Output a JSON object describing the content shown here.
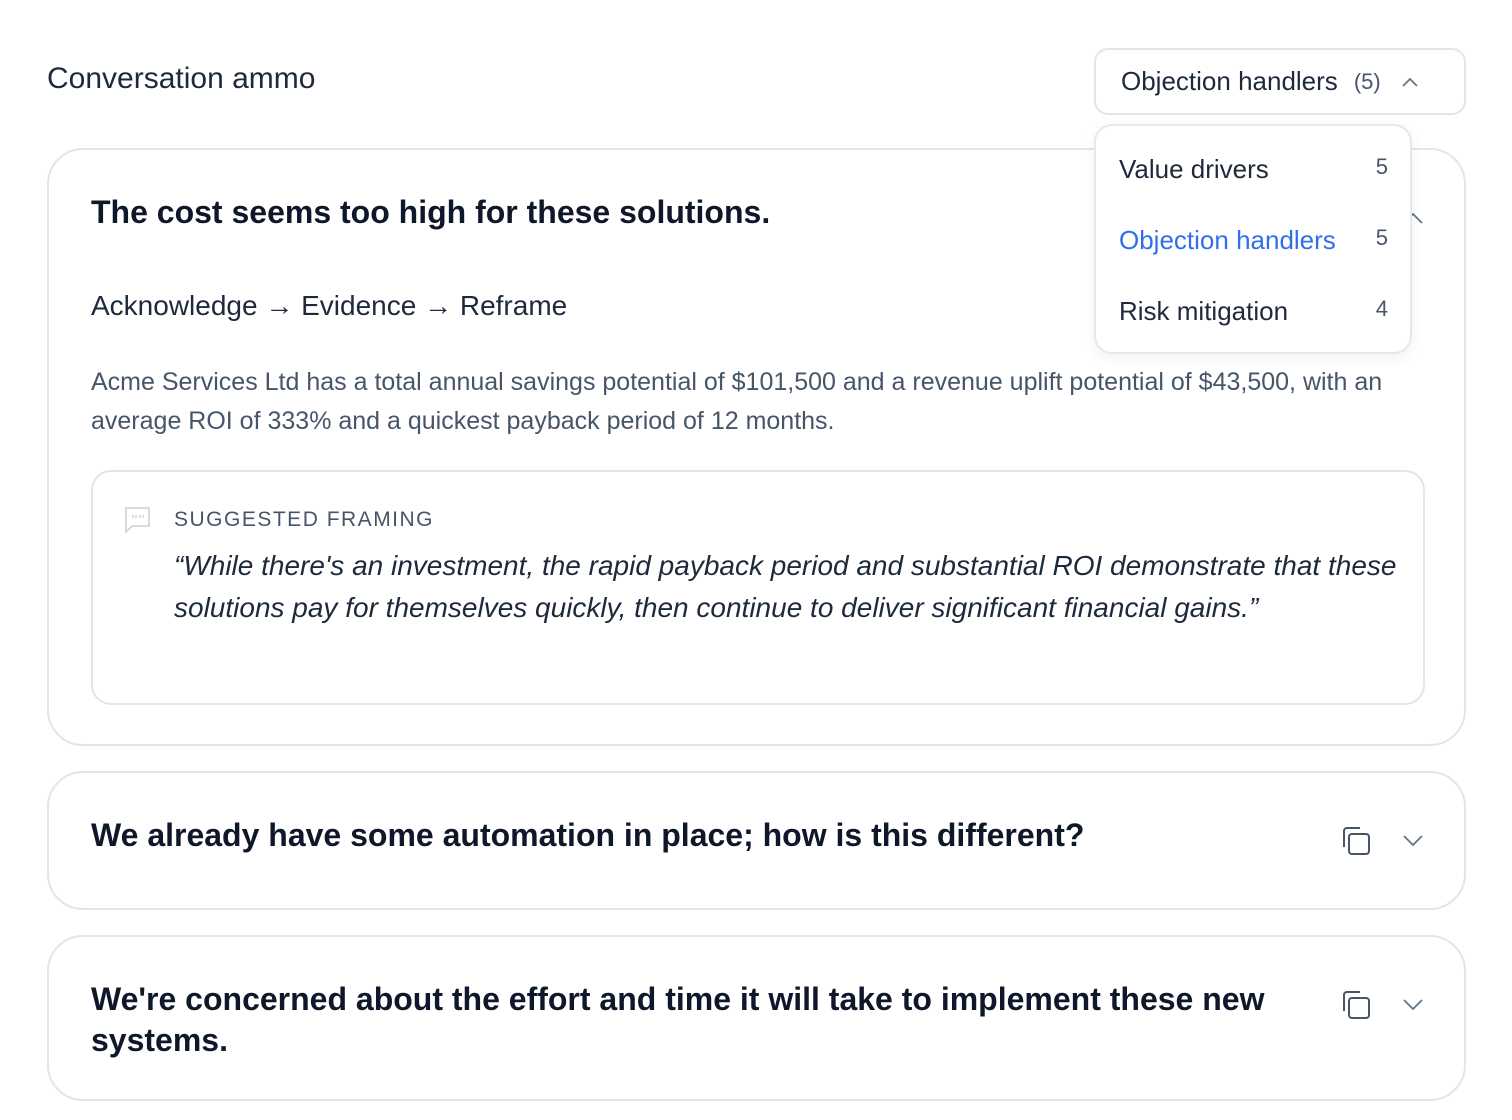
{
  "header": {
    "title": "Conversation ammo"
  },
  "dropdown": {
    "selected": "Objection handlers",
    "count": "(5)",
    "open": true,
    "options": [
      {
        "label": "Value drivers",
        "count": "5"
      },
      {
        "label": "Objection handlers",
        "count": "5",
        "active": true
      },
      {
        "label": "Risk mitigation",
        "count": "4"
      }
    ]
  },
  "cards": [
    {
      "title": "The cost seems too high for these solutions.",
      "expanded": true,
      "flow": "Acknowledge → Evidence → Reframe",
      "body": "Acme Services Ltd has a total annual savings potential of $101,500 and a revenue uplift potential of $43,500, with an average ROI of 333% and a quickest payback period of 12 months.",
      "framing_label": "SUGGESTED FRAMING",
      "framing_quote": "“While there's an investment, the rapid payback period and substantial ROI demonstrate that these solutions pay for themselves quickly, then continue to deliver significant financial gains.”"
    },
    {
      "title": "We already have some automation in place; how is this different?",
      "expanded": false
    },
    {
      "title": "We're concerned about the effort and time it will take to implement these new systems.",
      "expanded": false
    }
  ],
  "colors": {
    "accent": "#2f6fed",
    "border": "#e2e5ea",
    "muted": "#475569"
  }
}
